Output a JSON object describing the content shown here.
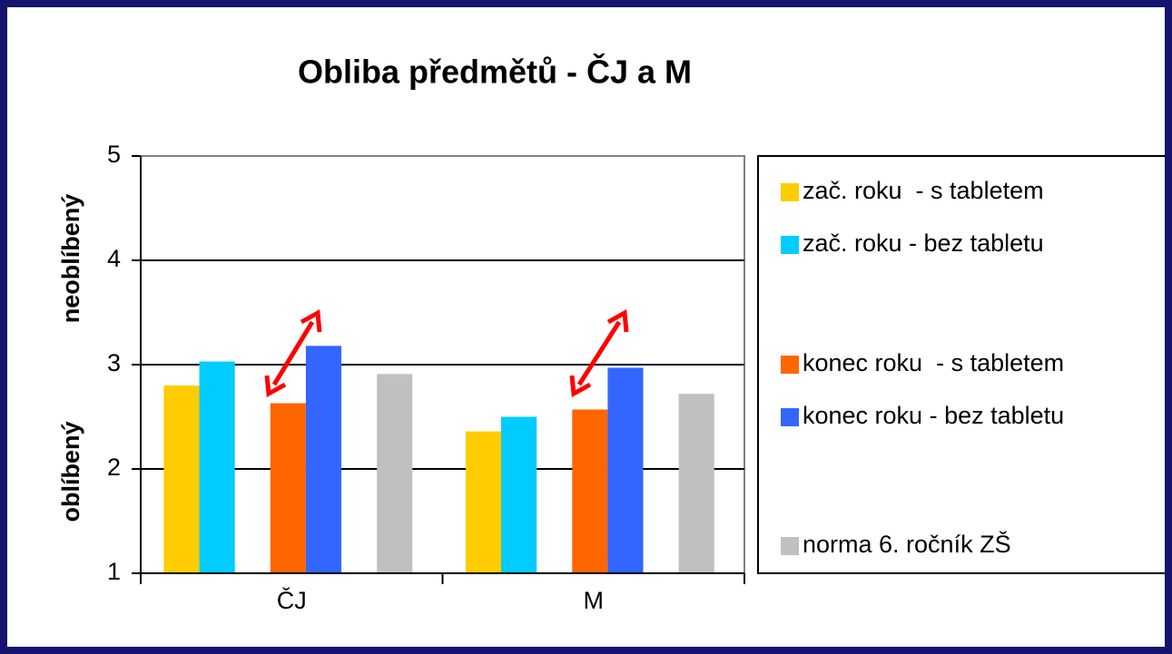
{
  "chart_data": {
    "type": "bar",
    "title": "Obliba předmětů - ČJ a M",
    "ylabels": [
      "neoblíbený",
      "oblíbený"
    ],
    "categories": [
      "ČJ",
      "M"
    ],
    "series": [
      {
        "name": "zač. roku  - s tabletem",
        "color": "#ffcc00",
        "values": [
          2.8,
          2.36
        ]
      },
      {
        "name": "zač. roku - bez tabletu",
        "color": "#00ccff",
        "values": [
          3.03,
          2.5
        ]
      },
      {
        "name": "konec roku  - s tabletem",
        "color": "#ff6600",
        "values": [
          2.63,
          2.57
        ]
      },
      {
        "name": "konec roku - bez tabletu",
        "color": "#3366ff",
        "values": [
          3.18,
          2.97
        ]
      },
      {
        "name": "norma 6. ročník ZŠ",
        "color": "#c0c0c0",
        "values": [
          2.91,
          2.72
        ]
      }
    ],
    "ylim": [
      1,
      5
    ],
    "yticks": [
      1,
      2,
      3,
      4,
      5
    ],
    "grid": true
  }
}
